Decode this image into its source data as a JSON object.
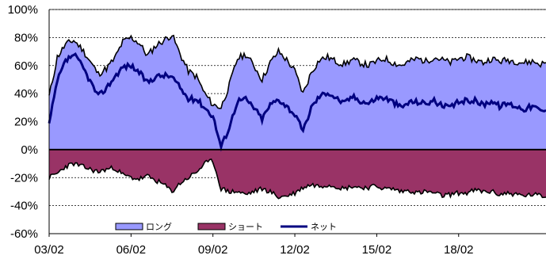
{
  "chart_data": {
    "type": "area",
    "grid": "horizontal-dashed",
    "legend_placement": "bottom-center",
    "ylim": [
      -60,
      100
    ],
    "y_ticks": [
      100,
      80,
      60,
      40,
      20,
      0,
      -20,
      -40,
      -60
    ],
    "y_tick_labels": [
      "100%",
      "80%",
      "60%",
      "40%",
      "20%",
      "0%",
      "-20%",
      "-40%",
      "-60%"
    ],
    "xlim": [
      2003.0,
      2021.2
    ],
    "x_ticks": [
      2003,
      2006,
      2009,
      2012,
      2015,
      2018
    ],
    "x_tick_labels": [
      "03/02",
      "06/02",
      "09/02",
      "12/02",
      "15/02",
      "18/02"
    ],
    "colors": {
      "long": "#9999ff",
      "short": "#993366",
      "net": "#000080",
      "outline": "#000000"
    },
    "series": [
      {
        "name": "ロング",
        "style": "area",
        "x": [
          2003.0,
          2003.3,
          2003.6,
          2003.9,
          2004.2,
          2004.5,
          2004.8,
          2005.1,
          2005.4,
          2005.7,
          2006.0,
          2006.3,
          2006.6,
          2006.9,
          2007.2,
          2007.5,
          2007.8,
          2008.1,
          2008.4,
          2008.7,
          2009.0,
          2009.3,
          2009.6,
          2009.9,
          2010.2,
          2010.5,
          2010.8,
          2011.1,
          2011.4,
          2011.7,
          2012.0,
          2012.3,
          2012.6,
          2012.9,
          2013.2,
          2013.5,
          2013.8,
          2014.1,
          2014.4,
          2014.7,
          2015.0,
          2015.3,
          2015.6,
          2015.9,
          2016.2,
          2016.5,
          2016.8,
          2017.1,
          2017.4,
          2017.7,
          2018.0,
          2018.3,
          2018.6,
          2018.9,
          2019.2,
          2019.5,
          2019.8,
          2020.1,
          2020.4,
          2020.7,
          2021.0,
          2021.2
        ],
        "values": [
          38,
          66,
          75,
          78,
          72,
          63,
          54,
          58,
          65,
          77,
          80,
          76,
          67,
          74,
          78,
          82,
          68,
          56,
          52,
          40,
          32,
          30,
          46,
          65,
          68,
          60,
          50,
          62,
          70,
          64,
          56,
          40,
          55,
          64,
          66,
          63,
          61,
          64,
          62,
          60,
          63,
          65,
          62,
          60,
          63,
          65,
          63,
          66,
          64,
          62,
          65,
          66,
          64,
          62,
          65,
          63,
          64,
          63,
          62,
          63,
          61,
          62
        ]
      },
      {
        "name": "ショート",
        "style": "area",
        "x": [
          2003.0,
          2003.3,
          2003.6,
          2003.9,
          2004.2,
          2004.5,
          2004.8,
          2005.1,
          2005.4,
          2005.7,
          2006.0,
          2006.3,
          2006.6,
          2006.9,
          2007.2,
          2007.5,
          2007.8,
          2008.1,
          2008.4,
          2008.7,
          2009.0,
          2009.3,
          2009.6,
          2009.9,
          2010.2,
          2010.5,
          2010.8,
          2011.1,
          2011.4,
          2011.7,
          2012.0,
          2012.3,
          2012.6,
          2012.9,
          2013.2,
          2013.5,
          2013.8,
          2014.1,
          2014.4,
          2014.7,
          2015.0,
          2015.3,
          2015.6,
          2015.9,
          2016.2,
          2016.5,
          2016.8,
          2017.1,
          2017.4,
          2017.7,
          2018.0,
          2018.3,
          2018.6,
          2018.9,
          2019.2,
          2019.5,
          2019.8,
          2020.1,
          2020.4,
          2020.7,
          2021.0,
          2021.2
        ],
        "values": [
          -20,
          -17,
          -12,
          -10,
          -12,
          -14,
          -16,
          -14,
          -13,
          -18,
          -20,
          -21,
          -19,
          -22,
          -25,
          -30,
          -24,
          -20,
          -16,
          -10,
          -8,
          -28,
          -30,
          -30,
          -32,
          -30,
          -28,
          -30,
          -34,
          -33,
          -31,
          -27,
          -25,
          -26,
          -25,
          -26,
          -28,
          -26,
          -27,
          -27,
          -26,
          -28,
          -28,
          -30,
          -29,
          -31,
          -30,
          -31,
          -33,
          -32,
          -31,
          -31,
          -29,
          -30,
          -30,
          -32,
          -31,
          -32,
          -33,
          -32,
          -33,
          -34
        ]
      },
      {
        "name": "ネット",
        "style": "line",
        "x": [
          2003.0,
          2003.3,
          2003.6,
          2003.9,
          2004.2,
          2004.5,
          2004.8,
          2005.1,
          2005.4,
          2005.7,
          2006.0,
          2006.3,
          2006.6,
          2006.9,
          2007.2,
          2007.5,
          2007.8,
          2008.1,
          2008.4,
          2008.7,
          2009.0,
          2009.3,
          2009.6,
          2009.9,
          2010.2,
          2010.5,
          2010.8,
          2011.1,
          2011.4,
          2011.7,
          2012.0,
          2012.3,
          2012.6,
          2012.9,
          2013.2,
          2013.5,
          2013.8,
          2014.1,
          2014.4,
          2014.7,
          2015.0,
          2015.3,
          2015.6,
          2015.9,
          2016.2,
          2016.5,
          2016.8,
          2017.1,
          2017.4,
          2017.7,
          2018.0,
          2018.3,
          2018.6,
          2018.9,
          2019.2,
          2019.5,
          2019.8,
          2020.1,
          2020.4,
          2020.7,
          2021.0,
          2021.2
        ],
        "values": [
          18,
          49,
          63,
          68,
          60,
          49,
          38,
          44,
          52,
          59,
          60,
          55,
          48,
          52,
          53,
          52,
          44,
          36,
          36,
          30,
          24,
          2,
          16,
          35,
          36,
          30,
          22,
          32,
          36,
          31,
          25,
          13,
          30,
          38,
          41,
          37,
          33,
          38,
          35,
          33,
          37,
          37,
          34,
          30,
          34,
          34,
          33,
          35,
          31,
          30,
          34,
          35,
          35,
          32,
          35,
          31,
          33,
          31,
          29,
          31,
          28,
          28
        ]
      }
    ]
  }
}
